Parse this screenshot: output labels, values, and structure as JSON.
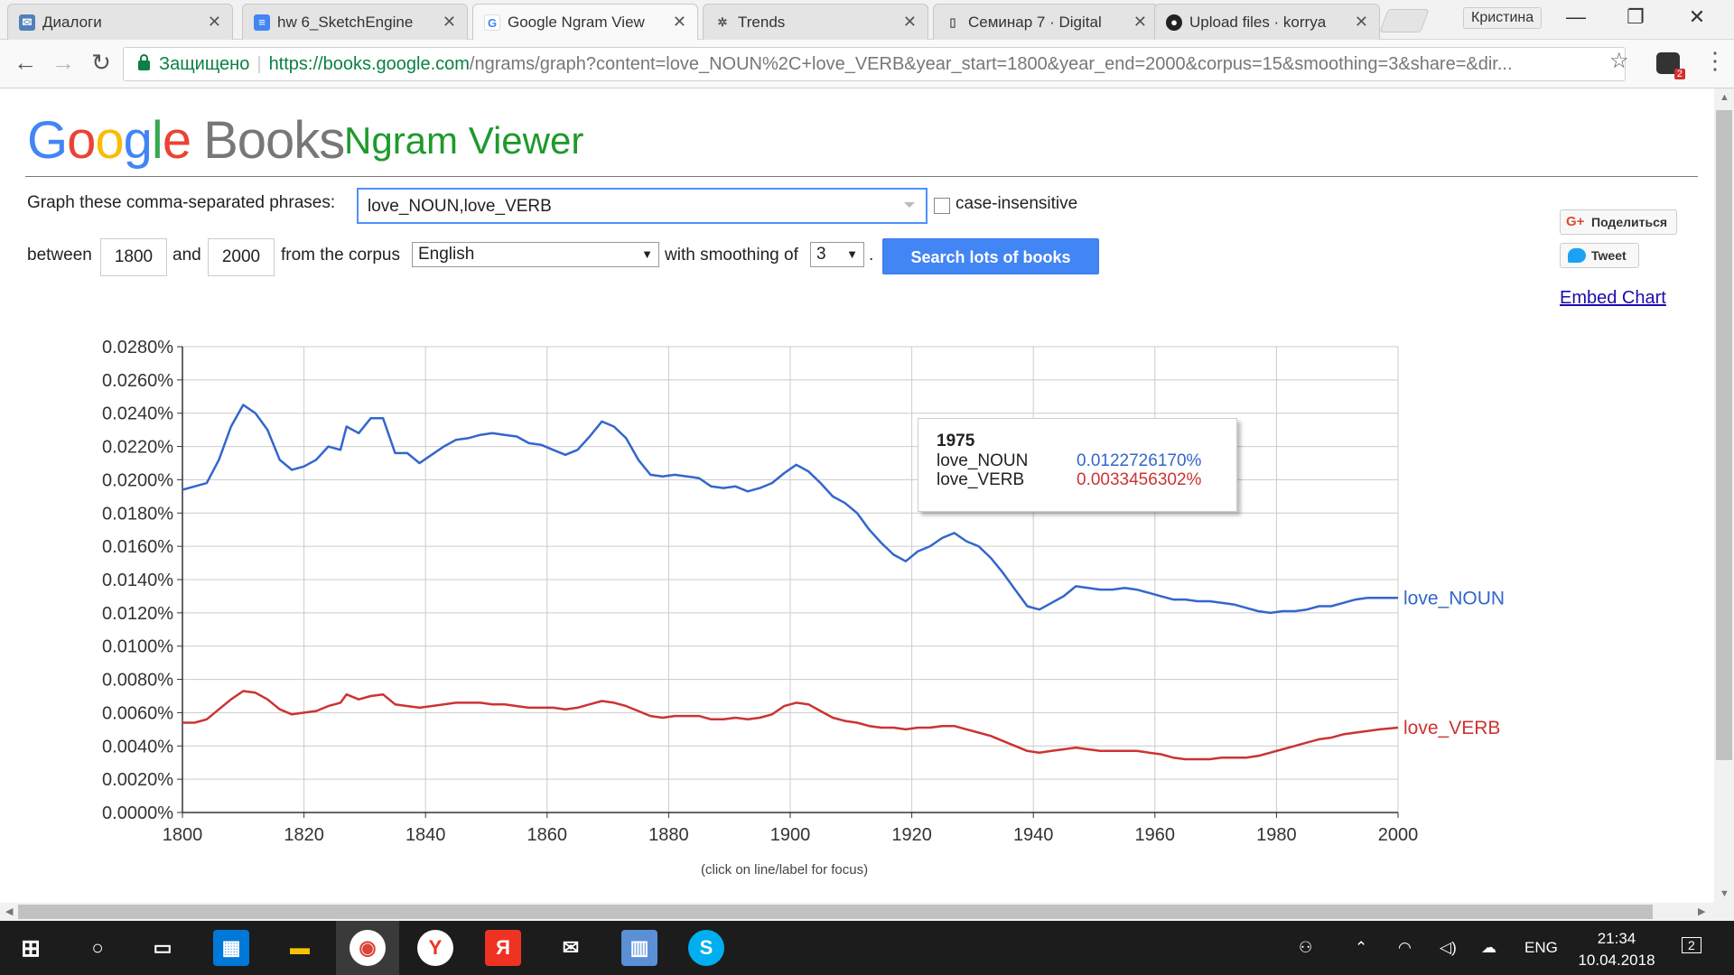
{
  "browser": {
    "tabs": [
      {
        "title": "Диалоги",
        "icon": "vk-icon",
        "color": "#5181b8"
      },
      {
        "title": "hw 6_SketchEngine",
        "icon": "docs-icon",
        "color": "#4285f4"
      },
      {
        "title": "Google Ngram View",
        "icon": "google-icon",
        "color": "#4285f4"
      },
      {
        "title": "Trends",
        "icon": "trends-icon",
        "color": "#555555"
      },
      {
        "title": "Семинар 7 · Digital",
        "icon": "book-icon",
        "color": "#555555"
      },
      {
        "title": "Upload files · korrya",
        "icon": "github-icon",
        "color": "#222222"
      }
    ],
    "profile_name": "Кристина",
    "secure_label": "Защищено",
    "url_host": "https://books.google.com",
    "url_rest": "/ngrams/graph?content=love_NOUN%2C+love_VERB&year_start=1800&year_end=2000&corpus=15&smoothing=3&share=&dir...",
    "extension_badge": "2"
  },
  "header": {
    "logo_letters": [
      "G",
      "o",
      "o",
      "g",
      "l",
      "e"
    ],
    "logo_books": "Books",
    "title": "Ngram Viewer"
  },
  "form": {
    "phrases_label": "Graph these comma-separated phrases:",
    "phrases_value": "love_NOUN,love_VERB",
    "case_insensitive_label": "case-insensitive",
    "between_label": "between",
    "year_start": "1800",
    "and_label": "and",
    "year_end": "2000",
    "corpus_label": "from the corpus",
    "corpus_value": "English",
    "smoothing_label": "with smoothing of",
    "smoothing_value": "3",
    "period": ".",
    "search_button": "Search lots of books"
  },
  "share": {
    "gplus_label": "Поделиться",
    "gplus_glyph": "G+",
    "tweet_label": "Tweet",
    "embed_label": "Embed Chart"
  },
  "tooltip": {
    "year": "1975",
    "rows": [
      {
        "name": "love_NOUN",
        "value": "0.0122726170%",
        "color": "#3366cc"
      },
      {
        "name": "love_VERB",
        "value": "0.0033456302%",
        "color": "#cc3333"
      }
    ]
  },
  "hint": "(click on line/label for focus)",
  "taskbar": {
    "lang": "ENG",
    "time": "21:34",
    "date": "10.04.2018",
    "notifications": "2"
  },
  "chart_data": {
    "type": "line",
    "xlim": [
      1800,
      2000
    ],
    "ylim": [
      0,
      0.028
    ],
    "x_ticks": [
      "1800",
      "1820",
      "1840",
      "1860",
      "1880",
      "1900",
      "1920",
      "1940",
      "1960",
      "1980",
      "2000"
    ],
    "y_ticks": [
      "0.0000%",
      "0.0020%",
      "0.0040%",
      "0.0060%",
      "0.0080%",
      "0.0100%",
      "0.0120%",
      "0.0140%",
      "0.0160%",
      "0.0180%",
      "0.0200%",
      "0.0220%",
      "0.0240%",
      "0.0260%",
      "0.0280%"
    ],
    "grid": true,
    "series": [
      {
        "name": "love_NOUN",
        "color": "#3366cc",
        "points": [
          [
            1800,
            0.0194
          ],
          [
            1802,
            0.0196
          ],
          [
            1804,
            0.0198
          ],
          [
            1806,
            0.0212
          ],
          [
            1808,
            0.0232
          ],
          [
            1810,
            0.0245
          ],
          [
            1812,
            0.024
          ],
          [
            1814,
            0.023
          ],
          [
            1816,
            0.0212
          ],
          [
            1818,
            0.0206
          ],
          [
            1820,
            0.0208
          ],
          [
            1822,
            0.0212
          ],
          [
            1824,
            0.022
          ],
          [
            1826,
            0.0218
          ],
          [
            1827,
            0.0232
          ],
          [
            1829,
            0.0228
          ],
          [
            1831,
            0.0237
          ],
          [
            1833,
            0.0237
          ],
          [
            1835,
            0.0216
          ],
          [
            1837,
            0.0216
          ],
          [
            1839,
            0.021
          ],
          [
            1841,
            0.0215
          ],
          [
            1843,
            0.022
          ],
          [
            1845,
            0.0224
          ],
          [
            1847,
            0.0225
          ],
          [
            1849,
            0.0227
          ],
          [
            1851,
            0.0228
          ],
          [
            1853,
            0.0227
          ],
          [
            1855,
            0.0226
          ],
          [
            1857,
            0.0222
          ],
          [
            1859,
            0.0221
          ],
          [
            1861,
            0.0218
          ],
          [
            1863,
            0.0215
          ],
          [
            1865,
            0.0218
          ],
          [
            1867,
            0.0226
          ],
          [
            1869,
            0.0235
          ],
          [
            1871,
            0.0232
          ],
          [
            1873,
            0.0225
          ],
          [
            1875,
            0.0212
          ],
          [
            1877,
            0.0203
          ],
          [
            1879,
            0.0202
          ],
          [
            1881,
            0.0203
          ],
          [
            1883,
            0.0202
          ],
          [
            1885,
            0.0201
          ],
          [
            1887,
            0.0196
          ],
          [
            1889,
            0.0195
          ],
          [
            1891,
            0.0196
          ],
          [
            1893,
            0.0193
          ],
          [
            1895,
            0.0195
          ],
          [
            1897,
            0.0198
          ],
          [
            1899,
            0.0204
          ],
          [
            1901,
            0.0209
          ],
          [
            1903,
            0.0205
          ],
          [
            1905,
            0.0198
          ],
          [
            1907,
            0.019
          ],
          [
            1909,
            0.0186
          ],
          [
            1911,
            0.018
          ],
          [
            1913,
            0.017
          ],
          [
            1915,
            0.0162
          ],
          [
            1917,
            0.0155
          ],
          [
            1919,
            0.0151
          ],
          [
            1921,
            0.0157
          ],
          [
            1923,
            0.016
          ],
          [
            1925,
            0.0165
          ],
          [
            1927,
            0.0168
          ],
          [
            1929,
            0.0163
          ],
          [
            1931,
            0.016
          ],
          [
            1933,
            0.0153
          ],
          [
            1935,
            0.0144
          ],
          [
            1937,
            0.0134
          ],
          [
            1939,
            0.0124
          ],
          [
            1941,
            0.0122
          ],
          [
            1943,
            0.0126
          ],
          [
            1945,
            0.013
          ],
          [
            1947,
            0.0136
          ],
          [
            1949,
            0.0135
          ],
          [
            1951,
            0.0134
          ],
          [
            1953,
            0.0134
          ],
          [
            1955,
            0.0135
          ],
          [
            1957,
            0.0134
          ],
          [
            1959,
            0.0132
          ],
          [
            1961,
            0.013
          ],
          [
            1963,
            0.0128
          ],
          [
            1965,
            0.0128
          ],
          [
            1967,
            0.0127
          ],
          [
            1969,
            0.0127
          ],
          [
            1971,
            0.0126
          ],
          [
            1973,
            0.0125
          ],
          [
            1975,
            0.0123
          ],
          [
            1977,
            0.0121
          ],
          [
            1979,
            0.012
          ],
          [
            1981,
            0.0121
          ],
          [
            1983,
            0.0121
          ],
          [
            1985,
            0.0122
          ],
          [
            1987,
            0.0124
          ],
          [
            1989,
            0.0124
          ],
          [
            1991,
            0.0126
          ],
          [
            1993,
            0.0128
          ],
          [
            1995,
            0.0129
          ],
          [
            1997,
            0.0129
          ],
          [
            2000,
            0.0129
          ]
        ]
      },
      {
        "name": "love_VERB",
        "color": "#cc3333",
        "points": [
          [
            1800,
            0.0054
          ],
          [
            1802,
            0.0054
          ],
          [
            1804,
            0.0056
          ],
          [
            1806,
            0.0062
          ],
          [
            1808,
            0.0068
          ],
          [
            1810,
            0.0073
          ],
          [
            1812,
            0.0072
          ],
          [
            1814,
            0.0068
          ],
          [
            1816,
            0.0062
          ],
          [
            1818,
            0.0059
          ],
          [
            1820,
            0.006
          ],
          [
            1822,
            0.0061
          ],
          [
            1824,
            0.0064
          ],
          [
            1826,
            0.0066
          ],
          [
            1827,
            0.0071
          ],
          [
            1829,
            0.0068
          ],
          [
            1831,
            0.007
          ],
          [
            1833,
            0.0071
          ],
          [
            1835,
            0.0065
          ],
          [
            1837,
            0.0064
          ],
          [
            1839,
            0.0063
          ],
          [
            1841,
            0.0064
          ],
          [
            1843,
            0.0065
          ],
          [
            1845,
            0.0066
          ],
          [
            1847,
            0.0066
          ],
          [
            1849,
            0.0066
          ],
          [
            1851,
            0.0065
          ],
          [
            1853,
            0.0065
          ],
          [
            1855,
            0.0064
          ],
          [
            1857,
            0.0063
          ],
          [
            1859,
            0.0063
          ],
          [
            1861,
            0.0063
          ],
          [
            1863,
            0.0062
          ],
          [
            1865,
            0.0063
          ],
          [
            1867,
            0.0065
          ],
          [
            1869,
            0.0067
          ],
          [
            1871,
            0.0066
          ],
          [
            1873,
            0.0064
          ],
          [
            1875,
            0.0061
          ],
          [
            1877,
            0.0058
          ],
          [
            1879,
            0.0057
          ],
          [
            1881,
            0.0058
          ],
          [
            1883,
            0.0058
          ],
          [
            1885,
            0.0058
          ],
          [
            1887,
            0.0056
          ],
          [
            1889,
            0.0056
          ],
          [
            1891,
            0.0057
          ],
          [
            1893,
            0.0056
          ],
          [
            1895,
            0.0057
          ],
          [
            1897,
            0.0059
          ],
          [
            1899,
            0.0064
          ],
          [
            1901,
            0.0066
          ],
          [
            1903,
            0.0065
          ],
          [
            1905,
            0.0061
          ],
          [
            1907,
            0.0057
          ],
          [
            1909,
            0.0055
          ],
          [
            1911,
            0.0054
          ],
          [
            1913,
            0.0052
          ],
          [
            1915,
            0.0051
          ],
          [
            1917,
            0.0051
          ],
          [
            1919,
            0.005
          ],
          [
            1921,
            0.0051
          ],
          [
            1923,
            0.0051
          ],
          [
            1925,
            0.0052
          ],
          [
            1927,
            0.0052
          ],
          [
            1929,
            0.005
          ],
          [
            1931,
            0.0048
          ],
          [
            1933,
            0.0046
          ],
          [
            1935,
            0.0043
          ],
          [
            1937,
            0.004
          ],
          [
            1939,
            0.0037
          ],
          [
            1941,
            0.0036
          ],
          [
            1943,
            0.0037
          ],
          [
            1945,
            0.0038
          ],
          [
            1947,
            0.0039
          ],
          [
            1949,
            0.0038
          ],
          [
            1951,
            0.0037
          ],
          [
            1953,
            0.0037
          ],
          [
            1955,
            0.0037
          ],
          [
            1957,
            0.0037
          ],
          [
            1959,
            0.0036
          ],
          [
            1961,
            0.0035
          ],
          [
            1963,
            0.0033
          ],
          [
            1965,
            0.0032
          ],
          [
            1967,
            0.0032
          ],
          [
            1969,
            0.0032
          ],
          [
            1971,
            0.0033
          ],
          [
            1973,
            0.0033
          ],
          [
            1975,
            0.0033
          ],
          [
            1977,
            0.0034
          ],
          [
            1979,
            0.0036
          ],
          [
            1981,
            0.0038
          ],
          [
            1983,
            0.004
          ],
          [
            1985,
            0.0042
          ],
          [
            1987,
            0.0044
          ],
          [
            1989,
            0.0045
          ],
          [
            1991,
            0.0047
          ],
          [
            1993,
            0.0048
          ],
          [
            1995,
            0.0049
          ],
          [
            1997,
            0.005
          ],
          [
            2000,
            0.0051
          ]
        ]
      }
    ]
  }
}
